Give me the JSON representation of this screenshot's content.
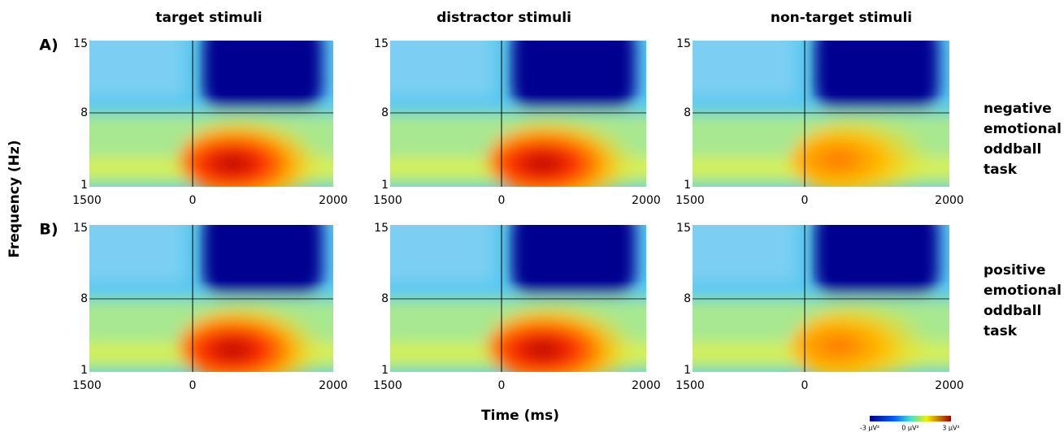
{
  "figure": {
    "column_titles": [
      "target stimuli",
      "distractor stimuli",
      "non-target stimuli"
    ],
    "rows": [
      {
        "label": "A)",
        "task": [
          "negative",
          "emotional",
          "oddball",
          "task"
        ]
      },
      {
        "label": "B)",
        "task": [
          "positive",
          "emotional",
          "oddball",
          "task"
        ]
      }
    ],
    "y_axis_label": "Frequency (Hz)",
    "x_axis_label": "Time (ms)",
    "x_ticks": [
      "1500",
      "0",
      "2000"
    ],
    "y_ticks": [
      "15",
      "8",
      "1"
    ],
    "colorbar_labels": [
      "-3 µV²",
      "0 µV²",
      "3 µV²"
    ]
  }
}
